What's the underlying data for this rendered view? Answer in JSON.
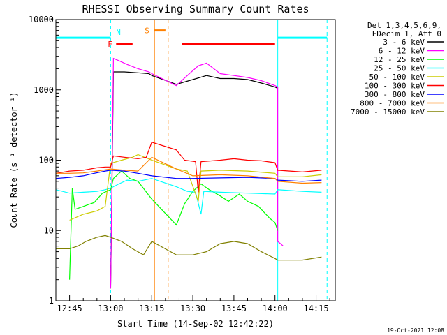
{
  "chart_data": {
    "type": "line",
    "title": "RHESSI Observing Summary Count Rates",
    "xlabel": "Start Time (14-Sep-02 12:42:22)",
    "ylabel": "Count Rate (s⁻¹ detector⁻¹)",
    "yscale": "log",
    "ylim": [
      1,
      10000
    ],
    "xlim": [
      "12:40",
      "14:22"
    ],
    "x_ticks": [
      "12:45",
      "13:00",
      "13:15",
      "13:30",
      "13:45",
      "14:00",
      "14:15"
    ],
    "y_ticks": [
      "1",
      "10",
      "100",
      "1000",
      "10000"
    ],
    "grid": false,
    "legend_position": "right",
    "legend_header": [
      "Det 1,3,4,5,6,9,",
      "FDecim 1, Att 0"
    ],
    "timestamp": "19-Oct-2021 12:08",
    "series": [
      {
        "name": "3 - 6 keV",
        "color": "#000000",
        "points": [
          [
            "13:00",
            1.5
          ],
          [
            "13:01",
            1800
          ],
          [
            "13:05",
            1800
          ],
          [
            "13:10",
            1750
          ],
          [
            "13:14",
            1700
          ],
          [
            "13:15",
            1600
          ],
          [
            "13:24",
            1200
          ],
          [
            "13:30",
            1400
          ],
          [
            "13:35",
            1600
          ],
          [
            "13:40",
            1450
          ],
          [
            "13:45",
            1450
          ],
          [
            "13:50",
            1400
          ],
          [
            "13:55",
            1250
          ],
          [
            "14:00",
            1100
          ],
          [
            "14:01",
            1050
          ]
        ]
      },
      {
        "name": "6 - 12 keV",
        "color": "#ff00ff",
        "points": [
          [
            "13:00",
            1.5
          ],
          [
            "13:01",
            2800
          ],
          [
            "13:03",
            2600
          ],
          [
            "13:06",
            2300
          ],
          [
            "13:10",
            2000
          ],
          [
            "13:14",
            1800
          ],
          [
            "13:15",
            1700
          ],
          [
            "13:24",
            1150
          ],
          [
            "13:28",
            1600
          ],
          [
            "13:32",
            2200
          ],
          [
            "13:35",
            2400
          ],
          [
            "13:40",
            1700
          ],
          [
            "13:45",
            1600
          ],
          [
            "13:50",
            1500
          ],
          [
            "13:55",
            1350
          ],
          [
            "14:00",
            1150
          ],
          [
            "14:01",
            1100
          ],
          [
            "14:01",
            7
          ],
          [
            "14:02",
            6.5
          ],
          [
            "14:03",
            6
          ]
        ]
      },
      {
        "name": "12 - 25 keV",
        "color": "#00ff00",
        "points": [
          [
            "12:45",
            2
          ],
          [
            "12:46",
            40
          ],
          [
            "12:47",
            20
          ],
          [
            "12:50",
            22
          ],
          [
            "12:54",
            25
          ],
          [
            "12:57",
            34
          ],
          [
            "13:00",
            38
          ],
          [
            "13:01",
            55
          ],
          [
            "13:04",
            70
          ],
          [
            "13:07",
            55
          ],
          [
            "13:10",
            50
          ],
          [
            "13:15",
            28
          ],
          [
            "13:24",
            12
          ],
          [
            "13:27",
            24
          ],
          [
            "13:30",
            36
          ],
          [
            "13:33",
            46
          ],
          [
            "13:36",
            38
          ],
          [
            "13:40",
            31
          ],
          [
            "13:43",
            26
          ],
          [
            "13:47",
            33
          ],
          [
            "13:50",
            26
          ],
          [
            "13:54",
            22
          ],
          [
            "13:58",
            15
          ],
          [
            "14:00",
            13
          ],
          [
            "14:01",
            10
          ]
        ]
      },
      {
        "name": "25 - 50 keV",
        "color": "#00ffff",
        "points": [
          [
            "12:40",
            38
          ],
          [
            "12:45",
            34
          ],
          [
            "12:50",
            35
          ],
          [
            "12:55",
            36
          ],
          [
            "12:58",
            38
          ],
          [
            "13:00",
            40
          ],
          [
            "13:03",
            46
          ],
          [
            "13:06",
            52
          ],
          [
            "13:10",
            50
          ],
          [
            "13:15",
            55
          ],
          [
            "13:24",
            42
          ],
          [
            "13:28",
            36
          ],
          [
            "13:31",
            35
          ],
          [
            "13:33",
            17
          ],
          [
            "13:34",
            36
          ],
          [
            "13:40",
            35
          ],
          [
            "13:50",
            34
          ],
          [
            "14:00",
            33
          ],
          [
            "14:01",
            38
          ],
          [
            "14:10",
            36
          ],
          [
            "14:17",
            35
          ]
        ]
      },
      {
        "name": "50 - 100 keV",
        "color": "#cccc00",
        "points": [
          [
            "12:45",
            14
          ],
          [
            "12:50",
            17
          ],
          [
            "12:55",
            19
          ],
          [
            "12:58",
            22
          ],
          [
            "13:00",
            90
          ],
          [
            "13:04",
            100
          ],
          [
            "13:08",
            110
          ],
          [
            "13:10",
            120
          ],
          [
            "13:15",
            100
          ],
          [
            "13:24",
            75
          ],
          [
            "13:28",
            70
          ],
          [
            "13:32",
            26
          ],
          [
            "13:33",
            70
          ],
          [
            "13:40",
            72
          ],
          [
            "13:50",
            70
          ],
          [
            "14:00",
            65
          ],
          [
            "14:01",
            58
          ],
          [
            "14:10",
            58
          ],
          [
            "14:17",
            62
          ]
        ]
      },
      {
        "name": "100 - 300 keV",
        "color": "#ff0000",
        "points": [
          [
            "12:40",
            65
          ],
          [
            "12:45",
            70
          ],
          [
            "12:50",
            72
          ],
          [
            "12:55",
            78
          ],
          [
            "12:58",
            80
          ],
          [
            "13:00",
            80
          ],
          [
            "13:01",
            115
          ],
          [
            "13:05",
            110
          ],
          [
            "13:10",
            105
          ],
          [
            "13:13",
            110
          ],
          [
            "13:15",
            180
          ],
          [
            "13:24",
            140
          ],
          [
            "13:27",
            100
          ],
          [
            "13:31",
            95
          ],
          [
            "13:32",
            35
          ],
          [
            "13:33",
            95
          ],
          [
            "13:40",
            100
          ],
          [
            "13:45",
            105
          ],
          [
            "13:50",
            100
          ],
          [
            "13:55",
            98
          ],
          [
            "14:00",
            92
          ],
          [
            "14:01",
            72
          ],
          [
            "14:10",
            68
          ],
          [
            "14:17",
            72
          ]
        ]
      },
      {
        "name": "300 - 800 keV",
        "color": "#0000ff",
        "points": [
          [
            "12:40",
            55
          ],
          [
            "12:45",
            57
          ],
          [
            "12:50",
            60
          ],
          [
            "12:54",
            65
          ],
          [
            "12:58",
            70
          ],
          [
            "13:00",
            72
          ],
          [
            "13:05",
            70
          ],
          [
            "13:10",
            65
          ],
          [
            "13:15",
            60
          ],
          [
            "13:24",
            55
          ],
          [
            "13:30",
            55
          ],
          [
            "13:40",
            56
          ],
          [
            "13:50",
            57
          ],
          [
            "14:00",
            55
          ],
          [
            "14:01",
            52
          ],
          [
            "14:10",
            50
          ],
          [
            "14:17",
            52
          ]
        ]
      },
      {
        "name": "800 - 7000 keV",
        "color": "#ff8000",
        "points": [
          [
            "12:40",
            65
          ],
          [
            "12:45",
            65
          ],
          [
            "12:50",
            66
          ],
          [
            "12:55",
            70
          ],
          [
            "13:00",
            75
          ],
          [
            "13:05",
            72
          ],
          [
            "13:10",
            70
          ],
          [
            "13:15",
            110
          ],
          [
            "13:24",
            75
          ],
          [
            "13:30",
            60
          ],
          [
            "13:40",
            62
          ],
          [
            "13:50",
            60
          ],
          [
            "14:00",
            55
          ],
          [
            "14:01",
            50
          ],
          [
            "14:10",
            47
          ],
          [
            "14:17",
            48
          ]
        ]
      },
      {
        "name": "7000 - 15000 keV",
        "color": "#808000",
        "points": [
          [
            "12:40",
            5.5
          ],
          [
            "12:45",
            5.5
          ],
          [
            "12:48",
            6
          ],
          [
            "12:51",
            7
          ],
          [
            "12:55",
            8
          ],
          [
            "12:58",
            8.5
          ],
          [
            "13:00",
            8
          ],
          [
            "13:04",
            7
          ],
          [
            "13:08",
            5.5
          ],
          [
            "13:12",
            4.5
          ],
          [
            "13:15",
            7
          ],
          [
            "13:24",
            4.5
          ],
          [
            "13:30",
            4.5
          ],
          [
            "13:35",
            5
          ],
          [
            "13:40",
            6.5
          ],
          [
            "13:45",
            7
          ],
          [
            "13:50",
            6.5
          ],
          [
            "13:55",
            5
          ],
          [
            "14:00",
            4
          ],
          [
            "14:01",
            3.8
          ],
          [
            "14:10",
            3.8
          ],
          [
            "14:17",
            4.2
          ]
        ]
      }
    ],
    "annotations": [
      {
        "label": "N",
        "kind": "night",
        "color": "#00ffff",
        "y": 5500,
        "start": "12:40",
        "end": "13:00"
      },
      {
        "label": "",
        "kind": "night",
        "color": "#00ffff",
        "y": 5500,
        "start": "14:01",
        "end": "14:19"
      },
      {
        "label": "F",
        "kind": "flare",
        "color": "#ff0000",
        "y": 4500,
        "start": "13:02",
        "end": "13:08"
      },
      {
        "label": "",
        "kind": "flare",
        "color": "#ff0000",
        "y": 4500,
        "start": "13:26",
        "end": "14:00"
      },
      {
        "label": "S",
        "kind": "saa",
        "color": "#ff8000",
        "y": 7000,
        "start": "13:16",
        "end": "13:20"
      }
    ],
    "vertical_lines": [
      {
        "time": "12:40",
        "color": "#00ffff",
        "style": "solid"
      },
      {
        "time": "13:00",
        "color": "#00ffff",
        "style": "dashed"
      },
      {
        "time": "13:16",
        "color": "#ff8000",
        "style": "solid"
      },
      {
        "time": "13:21",
        "color": "#ff8000",
        "style": "dashed"
      },
      {
        "time": "14:01",
        "color": "#00ffff",
        "style": "solid"
      },
      {
        "time": "14:19",
        "color": "#00ffff",
        "style": "dashed"
      }
    ]
  }
}
